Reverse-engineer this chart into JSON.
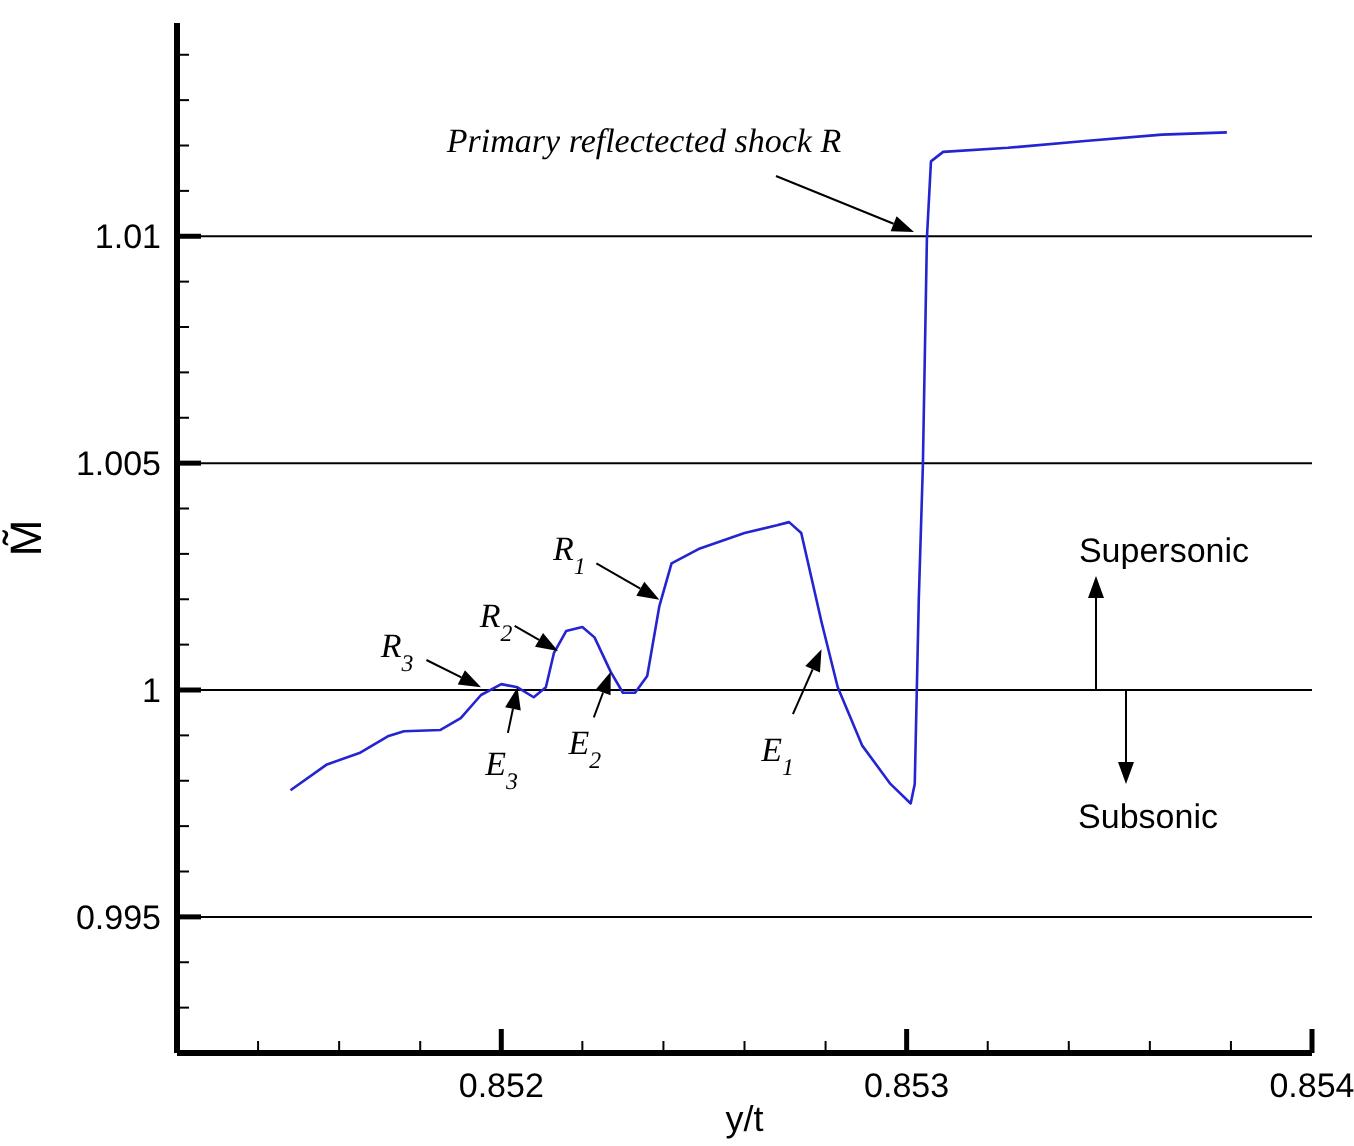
{
  "chart_data": {
    "type": "line",
    "xlabel": "y/t",
    "ylabel": "M̃",
    "xlim": [
      0.8512,
      0.854
    ],
    "ylim": [
      0.992,
      1.0147
    ],
    "xticks": [
      {
        "value": 0.8514,
        "label": null
      },
      {
        "value": 0.8516,
        "label": null
      },
      {
        "value": 0.8518,
        "label": null
      },
      0.852,
      {
        "value": 0.8522,
        "label": null
      },
      {
        "value": 0.8524,
        "label": null
      },
      {
        "value": 0.8526,
        "label": null
      },
      {
        "value": 0.8528,
        "label": null
      },
      0.853,
      {
        "value": 0.8532,
        "label": null
      },
      {
        "value": 0.8534,
        "label": null
      },
      {
        "value": 0.8536,
        "label": null
      },
      {
        "value": 0.8538,
        "label": null
      },
      0.854
    ],
    "yticks": [
      {
        "value": 0.993,
        "label": null
      },
      {
        "value": 0.994,
        "label": null
      },
      0.995,
      {
        "value": 0.996,
        "label": null
      },
      {
        "value": 0.997,
        "label": null
      },
      {
        "value": 0.998,
        "label": null
      },
      {
        "value": 0.999,
        "label": null
      },
      1,
      {
        "value": 1.001,
        "label": null
      },
      {
        "value": 1.002,
        "label": null
      },
      {
        "value": 1.003,
        "label": null
      },
      {
        "value": 1.004,
        "label": null
      },
      1.005,
      {
        "value": 1.006,
        "label": null
      },
      {
        "value": 1.007,
        "label": null
      },
      {
        "value": 1.008,
        "label": null
      },
      {
        "value": 1.009,
        "label": null
      },
      1.01,
      {
        "value": 1.011,
        "label": null
      },
      {
        "value": 1.012,
        "label": null
      },
      {
        "value": 1.013,
        "label": null
      },
      {
        "value": 1.014,
        "label": null
      }
    ],
    "grid": "y",
    "marker": "none",
    "line_style": "solid",
    "series": [
      {
        "color": "#2424d0",
        "x": [
          0.85148,
          0.85157,
          0.85165,
          0.85172,
          0.85176,
          0.85185,
          0.8519,
          0.85195,
          0.852,
          0.85204,
          0.85208,
          0.85211,
          0.85213,
          0.85216,
          0.8522,
          0.85223,
          0.85227,
          0.8523,
          0.85233,
          0.85236,
          0.85239,
          0.85242,
          0.85249,
          0.8526,
          0.85268,
          0.85271,
          0.85274,
          0.85279,
          0.85283,
          0.85289,
          0.85296,
          0.85301,
          0.85302,
          0.85303,
          0.85304,
          0.85305,
          0.85306,
          0.85309,
          0.85325,
          0.85344,
          0.85363,
          0.85379
        ],
        "values": [
          0.99779,
          0.99836,
          0.99861,
          0.99898,
          0.99909,
          0.99912,
          0.99938,
          0.99989,
          1.00013,
          1.00006,
          0.99984,
          1.00006,
          1.00082,
          1.0013,
          1.00139,
          1.00116,
          1.0004,
          0.99994,
          0.99994,
          1.00031,
          1.00185,
          1.00279,
          1.00312,
          1.00346,
          1.00363,
          1.0037,
          1.00346,
          1.0015,
          1.00006,
          0.99878,
          0.99793,
          0.9975,
          0.99793,
          1.00201,
          1.00493,
          1.00996,
          1.01165,
          1.01186,
          1.01195,
          1.0121,
          1.01224,
          1.01229
        ]
      }
    ],
    "annotations": [
      "Primary reflectected shock R",
      {
        "text": "R$_{1}$",
        "x": 0.85239,
        "y": 1.00199
      },
      {
        "text": "R$_{2}$",
        "x": 0.85214,
        "y": 1.00086
      },
      {
        "text": "R$_{3}$",
        "x": 0.85195,
        "y": 1.00006
      },
      {
        "text": "E$_{3}$",
        "x": 0.85204,
        "y": 1.00006
      },
      {
        "text": "E$_{2}$",
        "x": 0.85227,
        "y": 1.0004
      },
      {
        "text": "E$_{1}$",
        "x": 0.85279,
        "y": 1.0009
      },
      "Supersonic",
      "Subsonic"
    ]
  }
}
